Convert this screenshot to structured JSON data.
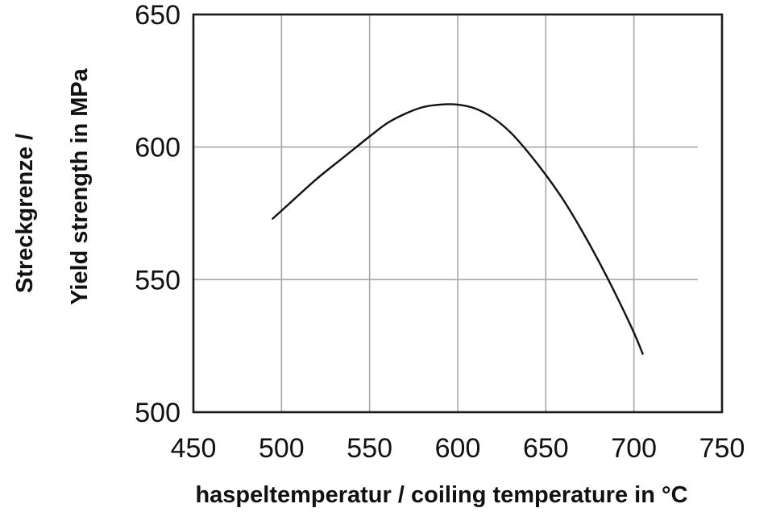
{
  "chart_data": {
    "type": "line",
    "title": "",
    "xlabel": "haspeltemperatur / coiling temperature in °C",
    "ylabel_line1": "Streckgrenze /",
    "ylabel_line2": "Yield strength in MPa",
    "xlim": [
      450,
      750
    ],
    "ylim": [
      500,
      650
    ],
    "xticks": [
      450,
      500,
      550,
      600,
      650,
      700,
      750
    ],
    "yticks": [
      500,
      550,
      600,
      650
    ],
    "grid": true,
    "series": [
      {
        "x": [
          495,
          505,
          520,
          535,
          550,
          560,
          570,
          580,
          590,
          600,
          610,
          620,
          630,
          640,
          650,
          660,
          670,
          680,
          690,
          700,
          705
        ],
        "values": [
          573,
          579,
          588,
          596,
          604,
          609,
          612.5,
          615,
          616,
          616,
          614.5,
          611,
          605.5,
          598,
          589.5,
          580,
          569,
          557,
          544,
          530,
          522
        ]
      }
    ],
    "colors": {
      "line": "#111111",
      "grid": "#a8a8a8",
      "frame": "#1a1a1a"
    }
  }
}
